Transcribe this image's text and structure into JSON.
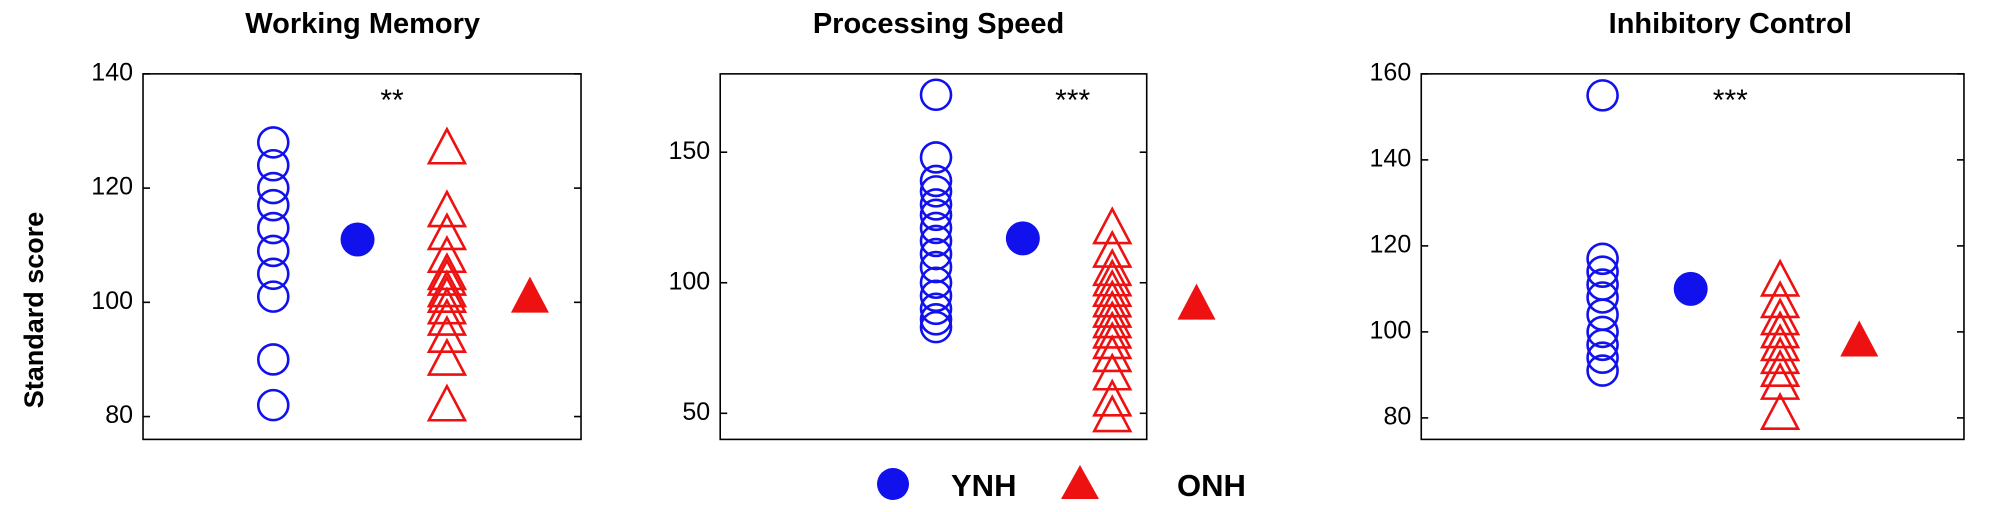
{
  "ylabel": "Standard score",
  "colors": {
    "ynh": "#1111ee",
    "onh": "#ee1111"
  },
  "legend": [
    {
      "label": "YNH",
      "marker": "filled-circle",
      "color": "#1111ee"
    },
    {
      "label": "ONH",
      "marker": "filled-triangle",
      "color": "#ee1111"
    }
  ],
  "chart_data": [
    {
      "type": "scatter",
      "title": "Working Memory",
      "ylabel": "Standard score",
      "ylim": [
        76,
        140
      ],
      "yticks": [
        80,
        100,
        120,
        140
      ],
      "significance": "**",
      "series": [
        {
          "name": "YNH",
          "kind": "individual",
          "marker": "open-circle",
          "values": [
            128,
            124,
            120,
            117,
            113,
            109,
            105,
            101,
            90,
            82
          ]
        },
        {
          "name": "YNH",
          "kind": "mean",
          "marker": "filled-circle",
          "values": [
            111
          ]
        },
        {
          "name": "ONH",
          "kind": "individual",
          "marker": "open-triangle",
          "values": [
            127,
            116,
            112,
            108,
            105,
            104,
            102,
            101,
            99,
            97,
            94,
            90,
            82
          ]
        },
        {
          "name": "ONH",
          "kind": "mean",
          "marker": "filled-triangle",
          "values": [
            101
          ]
        }
      ]
    },
    {
      "type": "scatter",
      "title": "Processing Speed",
      "ylabel": "",
      "ylim": [
        40,
        180
      ],
      "yticks": [
        50,
        100,
        150
      ],
      "significance": "***",
      "series": [
        {
          "name": "YNH",
          "kind": "individual",
          "marker": "open-circle",
          "values": [
            172,
            148,
            139,
            135,
            130,
            126,
            121,
            116,
            111,
            106,
            100,
            95,
            90,
            86,
            83
          ]
        },
        {
          "name": "YNH",
          "kind": "mean",
          "marker": "filled-circle",
          "values": [
            117
          ]
        },
        {
          "name": "ONH",
          "kind": "individual",
          "marker": "open-triangle",
          "values": [
            121,
            112,
            105,
            101,
            97,
            93,
            89,
            85,
            81,
            77,
            72,
            65,
            55,
            49
          ]
        },
        {
          "name": "ONH",
          "kind": "mean",
          "marker": "filled-triangle",
          "values": [
            92
          ]
        }
      ]
    },
    {
      "type": "scatter",
      "title": "Inhibitory Control",
      "ylabel": "",
      "ylim": [
        75,
        160
      ],
      "yticks": [
        80,
        100,
        120,
        140,
        160
      ],
      "significance": "***",
      "series": [
        {
          "name": "YNH",
          "kind": "individual",
          "marker": "open-circle",
          "values": [
            155,
            117,
            114,
            111,
            108,
            104,
            100,
            97,
            94,
            91
          ]
        },
        {
          "name": "YNH",
          "kind": "mean",
          "marker": "filled-circle",
          "values": [
            110
          ]
        },
        {
          "name": "ONH",
          "kind": "individual",
          "marker": "open-triangle",
          "values": [
            112,
            107,
            103,
            100,
            97,
            94,
            91,
            88,
            81
          ]
        },
        {
          "name": "ONH",
          "kind": "mean",
          "marker": "filled-triangle",
          "values": [
            98
          ]
        }
      ]
    }
  ]
}
